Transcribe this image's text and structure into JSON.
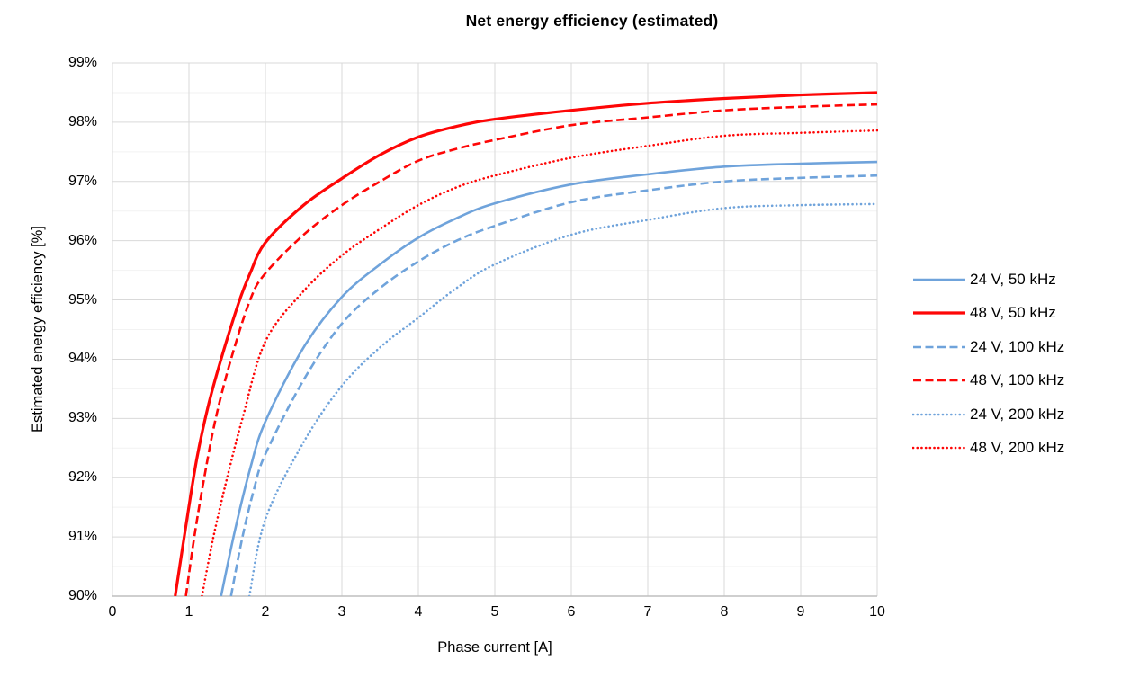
{
  "chart_data": {
    "type": "line",
    "title": "Net energy efficiency (estimated)",
    "xlabel": "Phase current [A]",
    "ylabel": "Estimated energy efficiency [%]",
    "xlim": [
      0,
      10
    ],
    "ylim": [
      90,
      99
    ],
    "x_ticks": [
      {
        "v": 0,
        "label": "0"
      },
      {
        "v": 1,
        "label": "1"
      },
      {
        "v": 2,
        "label": "2"
      },
      {
        "v": 3,
        "label": "3"
      },
      {
        "v": 4,
        "label": "4"
      },
      {
        "v": 5,
        "label": "5"
      },
      {
        "v": 6,
        "label": "6"
      },
      {
        "v": 7,
        "label": "7"
      },
      {
        "v": 8,
        "label": "8"
      },
      {
        "v": 9,
        "label": "9"
      },
      {
        "v": 10,
        "label": "10"
      }
    ],
    "y_ticks": [
      {
        "v": 90,
        "label": "90%"
      },
      {
        "v": 91,
        "label": "91%"
      },
      {
        "v": 92,
        "label": "92%"
      },
      {
        "v": 93,
        "label": "93%"
      },
      {
        "v": 94,
        "label": "94%"
      },
      {
        "v": 95,
        "label": "95%"
      },
      {
        "v": 96,
        "label": "96%"
      },
      {
        "v": 97,
        "label": "97%"
      },
      {
        "v": 98,
        "label": "98%"
      },
      {
        "v": 99,
        "label": "99%"
      }
    ],
    "grid": {
      "major_color": "#D9D9D9",
      "minor_color": "#F2F2F2",
      "axis_line_color": "#BFBFBF",
      "y_minor_step": 0.5,
      "x_minor": false
    },
    "legend_position": "right",
    "series": [
      {
        "name": "24 V, 50 kHz",
        "color": "#6FA3DB",
        "style": "solid",
        "width": 2.6,
        "points": [
          [
            1.42,
            90
          ],
          [
            1.6,
            91.1
          ],
          [
            1.8,
            92.15
          ],
          [
            2,
            92.95
          ],
          [
            2.5,
            94.2
          ],
          [
            3,
            95.05
          ],
          [
            3.5,
            95.6
          ],
          [
            4,
            96.05
          ],
          [
            4.5,
            96.38
          ],
          [
            5,
            96.63
          ],
          [
            6,
            96.95
          ],
          [
            7,
            97.12
          ],
          [
            8,
            97.25
          ],
          [
            9,
            97.3
          ],
          [
            10,
            97.33
          ]
        ]
      },
      {
        "name": "48 V, 50 kHz",
        "color": "#FE0606",
        "style": "solid",
        "width": 3.2,
        "points": [
          [
            0.82,
            90
          ],
          [
            0.95,
            91.1
          ],
          [
            1.1,
            92.3
          ],
          [
            1.25,
            93.2
          ],
          [
            1.42,
            94
          ],
          [
            1.65,
            94.95
          ],
          [
            1.8,
            95.45
          ],
          [
            2,
            95.97
          ],
          [
            2.5,
            96.6
          ],
          [
            3,
            97.05
          ],
          [
            3.5,
            97.45
          ],
          [
            4,
            97.75
          ],
          [
            4.5,
            97.93
          ],
          [
            5,
            98.05
          ],
          [
            6,
            98.2
          ],
          [
            7,
            98.32
          ],
          [
            8,
            98.4
          ],
          [
            9,
            98.46
          ],
          [
            10,
            98.5
          ]
        ]
      },
      {
        "name": "24 V, 100 kHz",
        "color": "#6FA3DB",
        "style": "dashed",
        "width": 2.6,
        "points": [
          [
            1.55,
            90
          ],
          [
            1.7,
            91
          ],
          [
            1.85,
            91.8
          ],
          [
            2,
            92.4
          ],
          [
            2.5,
            93.65
          ],
          [
            3,
            94.6
          ],
          [
            3.5,
            95.2
          ],
          [
            4,
            95.65
          ],
          [
            4.5,
            96.0
          ],
          [
            5,
            96.25
          ],
          [
            6,
            96.65
          ],
          [
            7,
            96.85
          ],
          [
            8,
            97.0
          ],
          [
            9,
            97.06
          ],
          [
            10,
            97.1
          ]
        ]
      },
      {
        "name": "48 V, 100 kHz",
        "color": "#FE0606",
        "style": "dashed",
        "width": 2.6,
        "points": [
          [
            0.96,
            90
          ],
          [
            1.07,
            91
          ],
          [
            1.2,
            92
          ],
          [
            1.35,
            93
          ],
          [
            1.55,
            94
          ],
          [
            1.8,
            95
          ],
          [
            2,
            95.45
          ],
          [
            2.5,
            96.1
          ],
          [
            3,
            96.6
          ],
          [
            3.5,
            97.0
          ],
          [
            4,
            97.35
          ],
          [
            4.5,
            97.55
          ],
          [
            5,
            97.7
          ],
          [
            6,
            97.95
          ],
          [
            7,
            98.08
          ],
          [
            8,
            98.2
          ],
          [
            9,
            98.26
          ],
          [
            10,
            98.3
          ]
        ]
      },
      {
        "name": "24 V, 200 kHz",
        "color": "#6FA3DB",
        "style": "dotted",
        "width": 2.6,
        "points": [
          [
            1.79,
            90
          ],
          [
            2,
            91.3
          ],
          [
            2.5,
            92.6
          ],
          [
            3,
            93.55
          ],
          [
            3.5,
            94.2
          ],
          [
            4,
            94.7
          ],
          [
            4.5,
            95.2
          ],
          [
            5,
            95.6
          ],
          [
            6,
            96.1
          ],
          [
            7,
            96.35
          ],
          [
            8,
            96.55
          ],
          [
            9,
            96.6
          ],
          [
            10,
            96.62
          ]
        ]
      },
      {
        "name": "48 V, 200 kHz",
        "color": "#FE0606",
        "style": "dotted",
        "width": 2.6,
        "points": [
          [
            1.17,
            90
          ],
          [
            1.32,
            91
          ],
          [
            1.5,
            92
          ],
          [
            1.7,
            93
          ],
          [
            2,
            94.3
          ],
          [
            2.5,
            95.15
          ],
          [
            3,
            95.75
          ],
          [
            3.5,
            96.2
          ],
          [
            4,
            96.6
          ],
          [
            4.5,
            96.9
          ],
          [
            5,
            97.1
          ],
          [
            6,
            97.4
          ],
          [
            7,
            97.6
          ],
          [
            8,
            97.77
          ],
          [
            9,
            97.82
          ],
          [
            10,
            97.86
          ]
        ]
      }
    ]
  }
}
